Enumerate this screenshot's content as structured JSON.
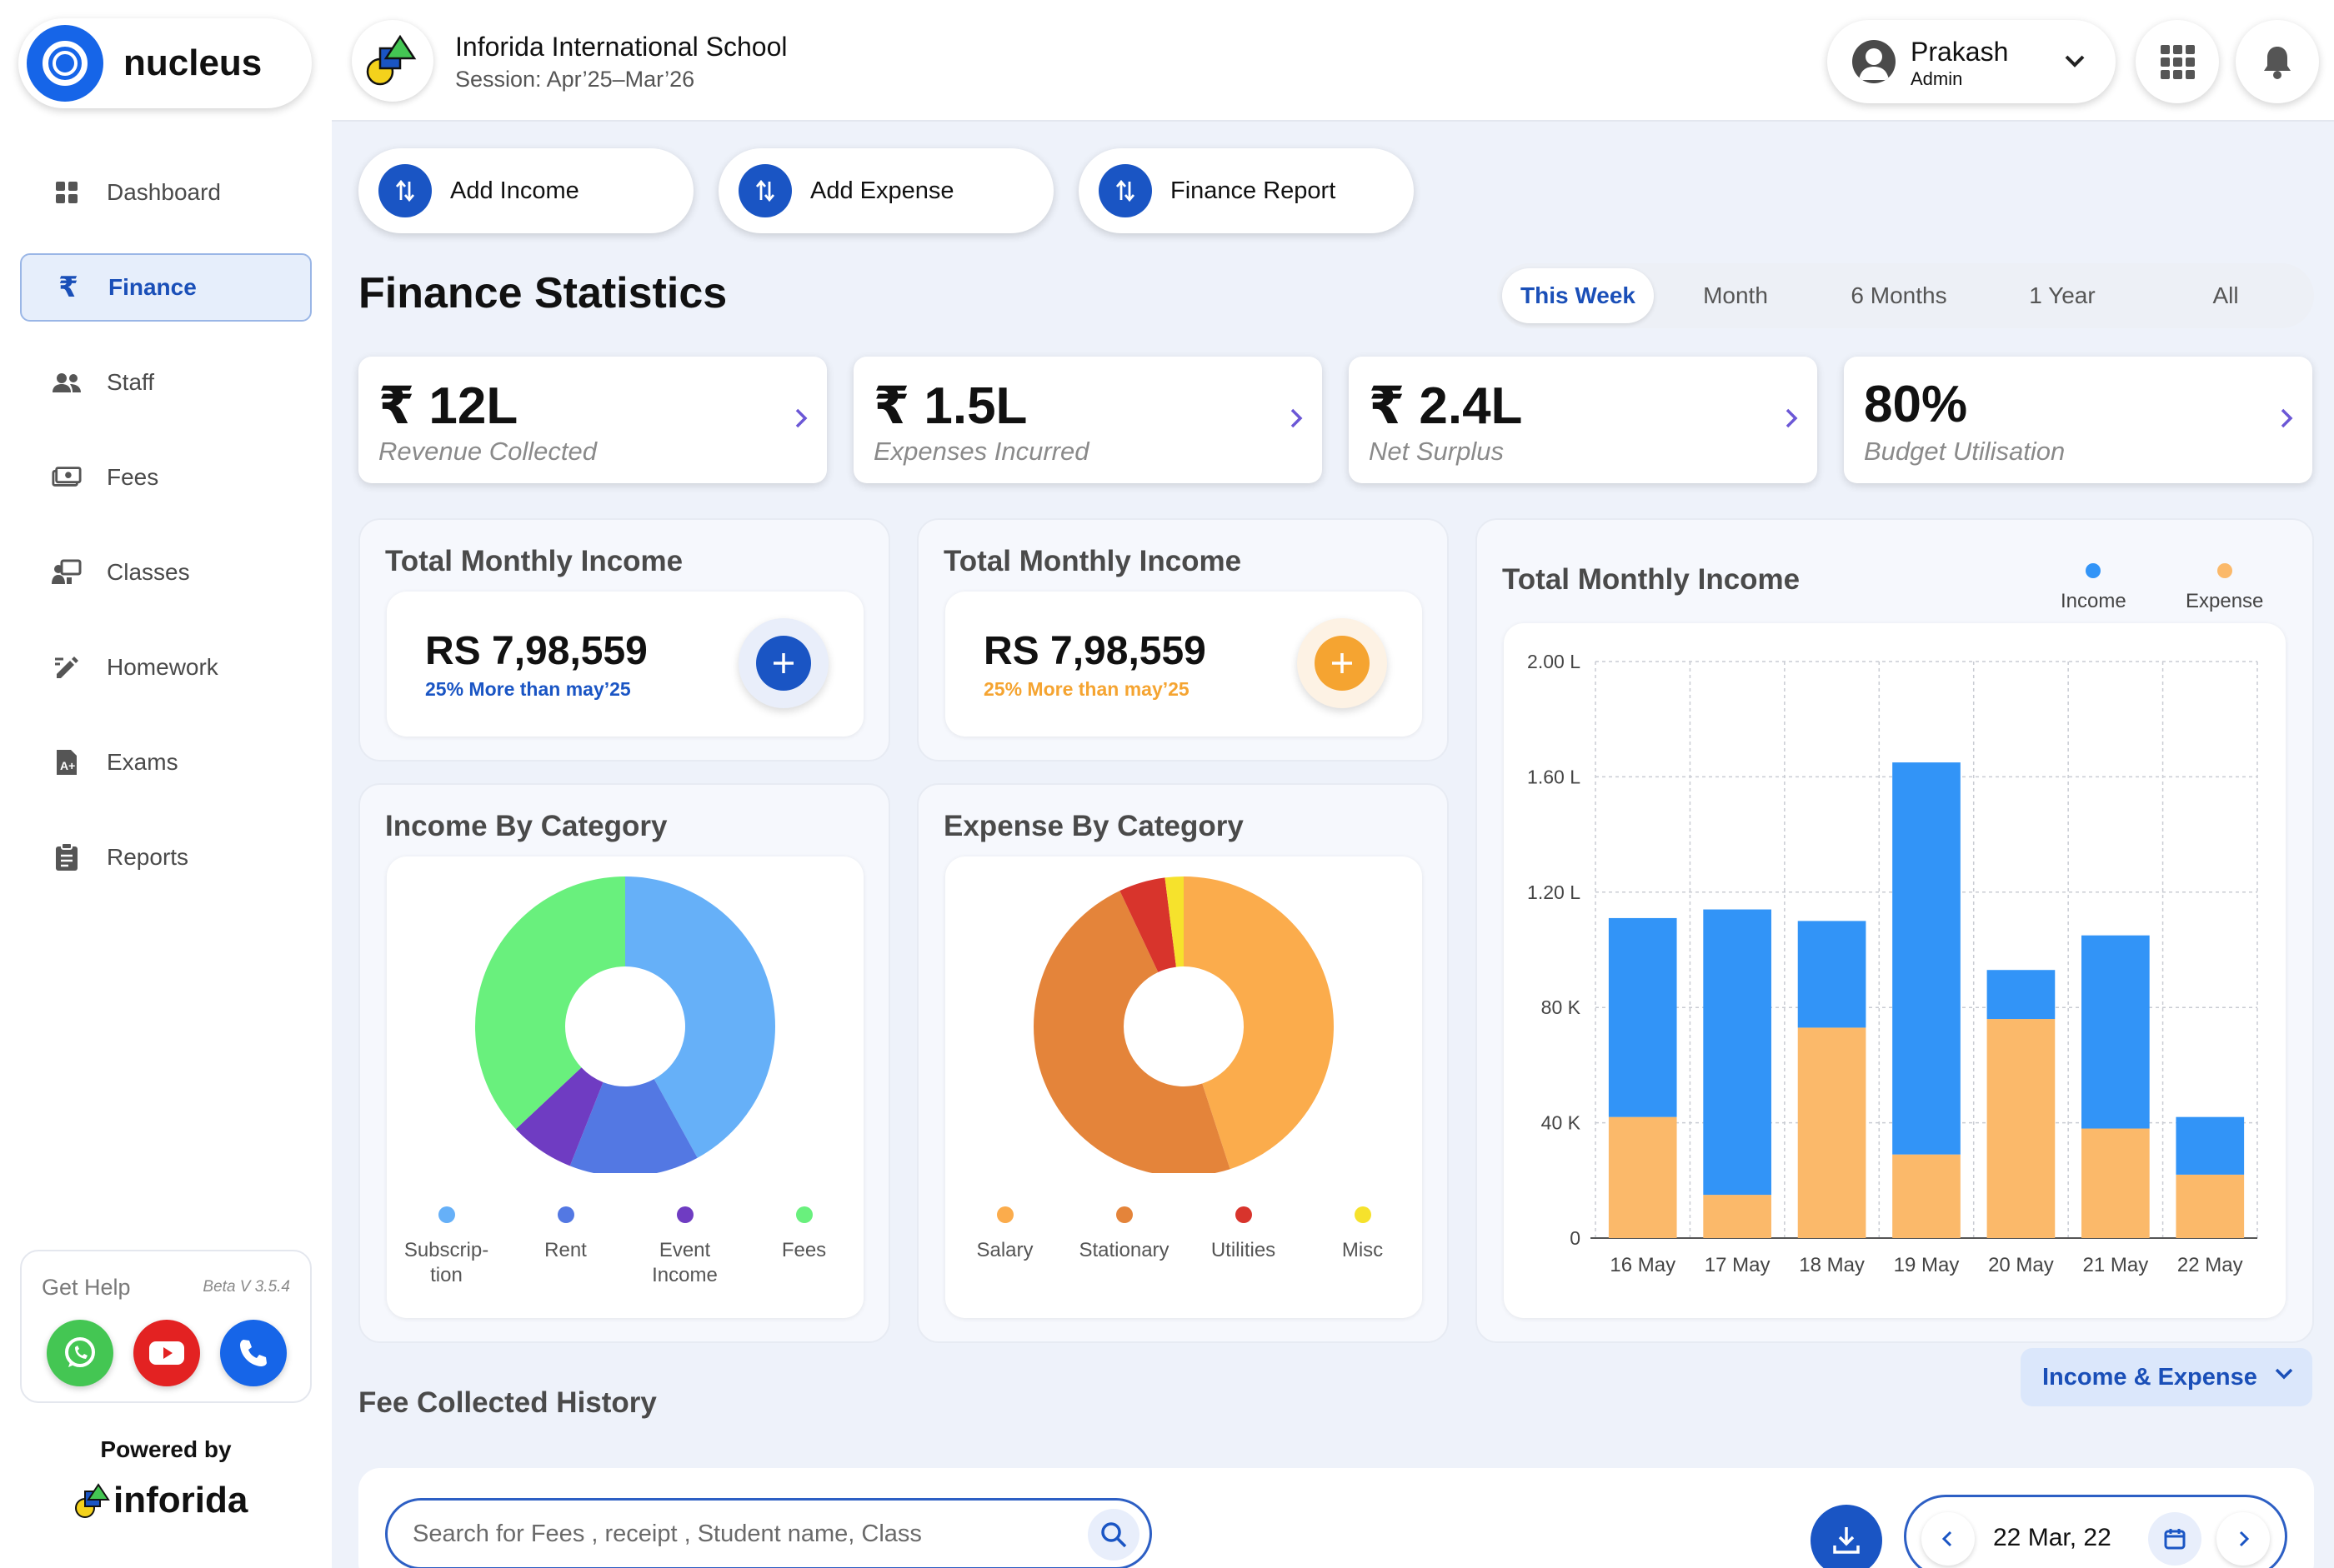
{
  "brand": {
    "name": "nucleus"
  },
  "sidebar": {
    "items": [
      {
        "label": "Dashboard",
        "icon": "dashboard-icon"
      },
      {
        "label": "Finance",
        "icon": "rupee-icon",
        "active": true
      },
      {
        "label": "Staff",
        "icon": "staff-icon"
      },
      {
        "label": "Fees",
        "icon": "fees-icon"
      },
      {
        "label": "Classes",
        "icon": "classes-icon"
      },
      {
        "label": "Homework",
        "icon": "homework-icon"
      },
      {
        "label": "Exams",
        "icon": "exams-icon"
      },
      {
        "label": "Reports",
        "icon": "reports-icon"
      }
    ],
    "help": {
      "title": "Get Help",
      "version": "Beta V 3.5.4"
    },
    "powered_by": "Powered by",
    "powered_brand": "inforida"
  },
  "header": {
    "school_name": "Inforida International School",
    "session": "Session: Apr’25–Mar’26",
    "user": {
      "name": "Prakash",
      "role": "Admin"
    }
  },
  "actions": [
    "Add Income",
    "Add Expense",
    "Finance Report"
  ],
  "page": {
    "title": "Finance Statistics"
  },
  "range_tabs": [
    "This Week",
    "Month",
    "6 Months",
    "1 Year",
    "All"
  ],
  "kpis": [
    {
      "value": "₹ 12L",
      "label": "Revenue Collected"
    },
    {
      "value": "₹ 1.5L",
      "label": "Expenses Incurred"
    },
    {
      "value": "₹ 2.4L",
      "label": "Net Surplus"
    },
    {
      "value": "80%",
      "label": "Budget Utilisation"
    }
  ],
  "income_cards": [
    {
      "title": "Total Monthly Income",
      "amount": "RS 7,98,559",
      "sub": "25% More than may’25",
      "accent": "#1a55c4"
    },
    {
      "title": "Total Monthly Income",
      "amount": "RS 7,98,559",
      "sub": "25% More than may’25",
      "accent": "#f5a431"
    }
  ],
  "income_by_category": {
    "title": "Income By Category",
    "legend": [
      "Subscrip-\ntion",
      "Rent",
      "Event\nIncome",
      "Fees"
    ],
    "legend_html": [
      "Subscrip-",
      "tion",
      "Rent",
      "Event",
      "Income",
      "Fees"
    ]
  },
  "expense_by_category": {
    "title": "Expense By Category",
    "legend": [
      "Salary",
      "Stationary",
      "Utilities",
      "Misc"
    ]
  },
  "bar_panel": {
    "title": "Total Monthly Income",
    "legend": [
      "Income",
      "Expense"
    ]
  },
  "fee_history": {
    "title": "Fee Collected History",
    "filter": "Income & Expense",
    "search_placeholder": "Search for Fees  , receipt , Student name, Class",
    "date": "22 Mar, 22"
  },
  "colors": {
    "primary": "#1a55c4",
    "income": "#3294f7",
    "expense": "#fbb96a",
    "orange": "#f5a431"
  },
  "chart_data": [
    {
      "type": "pie",
      "title": "Income By Category",
      "categories": [
        "Subscription",
        "Rent",
        "Event Income",
        "Fees"
      ],
      "values": [
        42,
        14,
        7,
        37
      ],
      "colors": [
        "#66b0f8",
        "#5378e3",
        "#6f3cc2",
        "#69f07d"
      ],
      "donut": true
    },
    {
      "type": "pie",
      "title": "Expense By Category",
      "categories": [
        "Salary",
        "Stationary",
        "Utilities",
        "Misc"
      ],
      "values": [
        45,
        48,
        5,
        2
      ],
      "colors": [
        "#fbac4c",
        "#e4843a",
        "#d8342c",
        "#f6e22c"
      ],
      "donut": true
    },
    {
      "type": "bar",
      "stacked": true,
      "title": "Total Monthly Income",
      "categories": [
        "16 May",
        "17 May",
        "18 May",
        "19 May",
        "20 May",
        "21 May",
        "22 May"
      ],
      "series": [
        {
          "name": "Expense",
          "values": [
            42000,
            15000,
            73000,
            29000,
            76000,
            38000,
            22000
          ],
          "color": "#fbb96a"
        },
        {
          "name": "Income",
          "values": [
            69000,
            99000,
            37000,
            136000,
            17000,
            67000,
            20000
          ],
          "color": "#3294f7"
        }
      ],
      "ylim": [
        0,
        200000
      ],
      "yticks": [
        0,
        40000,
        80000,
        120000,
        160000,
        200000
      ],
      "ytick_labels": [
        "0",
        "40 K",
        "80 K",
        "1.20 L",
        "1.60 L",
        "2.00 L"
      ],
      "grid": true,
      "legend": "top-right"
    }
  ]
}
